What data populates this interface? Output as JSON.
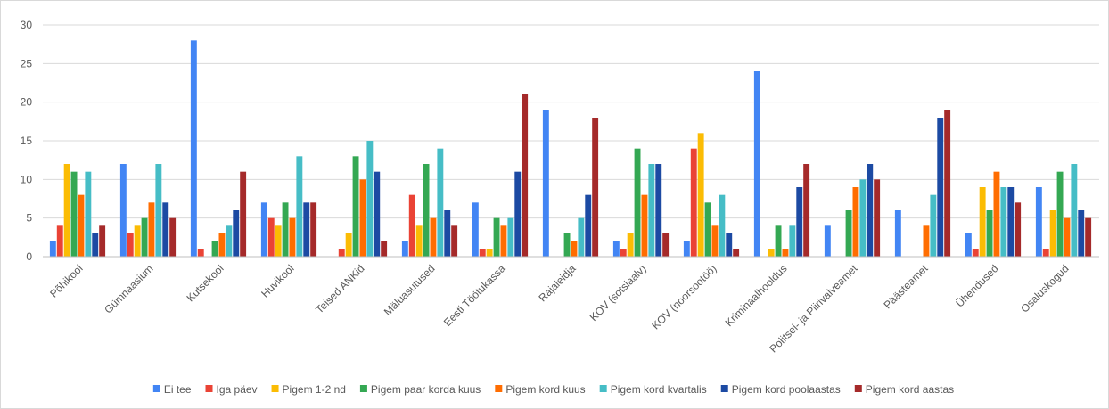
{
  "chart_data": {
    "type": "bar",
    "title": "",
    "xlabel": "",
    "ylabel": "",
    "ylim": [
      0,
      30
    ],
    "yticks": [
      0,
      5,
      10,
      15,
      20,
      25,
      30
    ],
    "grid": "horizontal",
    "legend_position": "bottom",
    "categories": [
      "Põhikool",
      "Gümnaasium",
      "Kutsekool",
      "Huvikool",
      "Teised ANKid",
      "Mäluasutused",
      "Eesti Töötukassa",
      "Rajaleidja",
      "KOV (sotsiaalv)",
      "KOV (noorsootöö)",
      "Kriminaalhooldus",
      "Politsei- ja Piirivalveamet",
      "Päästeamet",
      "Ühendused",
      "Osaluskogud"
    ],
    "series": [
      {
        "name": "Ei tee",
        "color": "#4285f4",
        "values": [
          2,
          12,
          28,
          7,
          0,
          2,
          7,
          19,
          2,
          2,
          24,
          4,
          6,
          3,
          9
        ]
      },
      {
        "name": "Iga päev",
        "color": "#ea4335",
        "values": [
          4,
          3,
          1,
          5,
          1,
          8,
          1,
          0,
          1,
          14,
          0,
          0,
          0,
          1,
          1
        ]
      },
      {
        "name": "Pigem 1-2 nd",
        "color": "#fbbc04",
        "values": [
          12,
          4,
          0,
          4,
          3,
          4,
          1,
          0,
          3,
          16,
          1,
          0,
          0,
          9,
          6
        ]
      },
      {
        "name": "Pigem paar korda kuus",
        "color": "#34a853",
        "values": [
          11,
          5,
          2,
          7,
          13,
          12,
          5,
          3,
          14,
          7,
          4,
          6,
          0,
          6,
          11
        ]
      },
      {
        "name": "Pigem kord kuus",
        "color": "#ff6d01",
        "values": [
          8,
          7,
          3,
          5,
          10,
          5,
          4,
          2,
          8,
          4,
          1,
          9,
          4,
          11,
          5
        ]
      },
      {
        "name": "Pigem kord kvartalis",
        "color": "#46bdc6",
        "values": [
          11,
          12,
          4,
          13,
          15,
          14,
          5,
          5,
          12,
          8,
          4,
          10,
          8,
          9,
          12
        ]
      },
      {
        "name": "Pigem kord poolaastas",
        "color": "#1c4aa3",
        "values": [
          3,
          7,
          6,
          7,
          11,
          6,
          11,
          8,
          12,
          3,
          9,
          12,
          18,
          9,
          6
        ]
      },
      {
        "name": "Pigem kord aastas",
        "color": "#a52a2a",
        "values": [
          4,
          5,
          11,
          7,
          2,
          4,
          21,
          18,
          3,
          1,
          12,
          10,
          19,
          7,
          5
        ]
      }
    ]
  }
}
